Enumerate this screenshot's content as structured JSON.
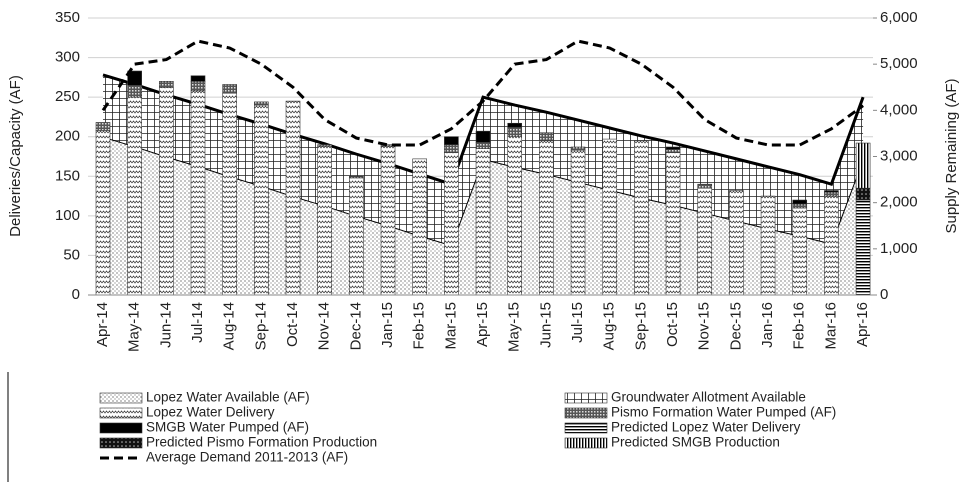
{
  "chart_data": {
    "type": "bar",
    "categories": [
      "Apr-14",
      "May-14",
      "Jun-14",
      "Jul-14",
      "Aug-14",
      "Sep-14",
      "Oct-14",
      "Nov-14",
      "Dec-14",
      "Jan-15",
      "Feb-15",
      "Mar-15",
      "Apr-15",
      "May-15",
      "Jun-15",
      "Jul-15",
      "Aug-15",
      "Sep-15",
      "Oct-15",
      "Nov-15",
      "Dec-15",
      "Jan-16",
      "Feb-16",
      "Mar-16",
      "Apr-16"
    ],
    "y_label": "Deliveries/Capacity (AF)",
    "y2_label": "Supply Remaining (AF)",
    "ylim": [
      0,
      350
    ],
    "yticks": [
      0,
      50,
      100,
      150,
      200,
      250,
      300,
      350
    ],
    "y2lim": [
      0,
      6000
    ],
    "y2ticks": [
      0,
      {
        "value": 1000,
        "label": "1,000"
      },
      {
        "value": 2000,
        "label": "2,000"
      },
      {
        "value": 3000,
        "label": "3,000"
      },
      {
        "value": 4000,
        "label": "4,000"
      },
      {
        "value": 5000,
        "label": "5,000"
      },
      {
        "value": 6000,
        "label": "6,000"
      }
    ],
    "areas": [
      {
        "name": "Lopez Water Available (AF)",
        "pattern": "dots",
        "values": [
          200,
          188,
          175,
          163,
          150,
          138,
          125,
          113,
          100,
          88,
          75,
          63,
          172,
          162,
          153,
          143,
          133,
          123,
          114,
          104,
          94,
          84,
          75,
          65,
          172
        ]
      },
      {
        "name": "Groundwater Allotment Available",
        "pattern": "grid",
        "values": [
          78,
          78,
          78,
          78,
          78,
          78,
          78,
          78,
          78,
          78,
          78,
          77,
          78,
          78,
          78,
          78,
          78,
          78,
          78,
          78,
          78,
          78,
          77,
          75,
          78
        ]
      }
    ],
    "series": [
      {
        "name": "Lopez Water Delivery",
        "pattern": "waves",
        "values": [
          208,
          250,
          262,
          258,
          255,
          240,
          245,
          188,
          148,
          188,
          172,
          180,
          185,
          200,
          195,
          183,
          197,
          195,
          180,
          135,
          132,
          125,
          110,
          125,
          null
        ]
      },
      {
        "name": "Pismo Formation Water Pumped (AF)",
        "pattern": "crosshatch",
        "values": [
          10,
          15,
          8,
          12,
          11,
          4,
          null,
          2,
          2,
          2,
          null,
          10,
          8,
          12,
          10,
          4,
          null,
          null,
          4,
          5,
          null,
          null,
          5,
          5,
          null
        ]
      },
      {
        "name": "SMGB Water Pumped (AF)",
        "pattern": "solid",
        "values": [
          null,
          18,
          null,
          7,
          null,
          null,
          null,
          null,
          null,
          null,
          null,
          10,
          14,
          5,
          null,
          null,
          null,
          null,
          3,
          null,
          null,
          null,
          5,
          2,
          null
        ]
      },
      {
        "name": "Predicted Lopez Water Delivery",
        "pattern": "hlines",
        "values": [
          null,
          null,
          null,
          null,
          null,
          null,
          null,
          null,
          null,
          null,
          null,
          null,
          null,
          null,
          null,
          null,
          null,
          null,
          null,
          null,
          null,
          null,
          null,
          null,
          120
        ]
      },
      {
        "name": "Predicted Pismo Formation Production",
        "pattern": "checker",
        "values": [
          null,
          null,
          null,
          null,
          null,
          null,
          null,
          null,
          null,
          null,
          null,
          null,
          null,
          null,
          null,
          null,
          null,
          null,
          null,
          null,
          null,
          null,
          null,
          null,
          15
        ]
      },
      {
        "name": "Predicted SMGB Production",
        "pattern": "vlines",
        "values": [
          null,
          null,
          null,
          null,
          null,
          null,
          null,
          null,
          null,
          null,
          null,
          null,
          null,
          null,
          null,
          null,
          null,
          null,
          null,
          null,
          null,
          null,
          null,
          null,
          57
        ]
      }
    ],
    "lines": [
      {
        "name": "Average Demand 2011-2013 (AF)",
        "axis": "y2",
        "dash": true,
        "values": [
          4000,
          5000,
          5100,
          5500,
          5350,
          5000,
          4500,
          3800,
          3400,
          3250,
          3250,
          3600,
          4200,
          5000,
          5100,
          5500,
          5350,
          5000,
          4500,
          3800,
          3400,
          3250,
          3250,
          3600,
          4100
        ]
      }
    ]
  }
}
